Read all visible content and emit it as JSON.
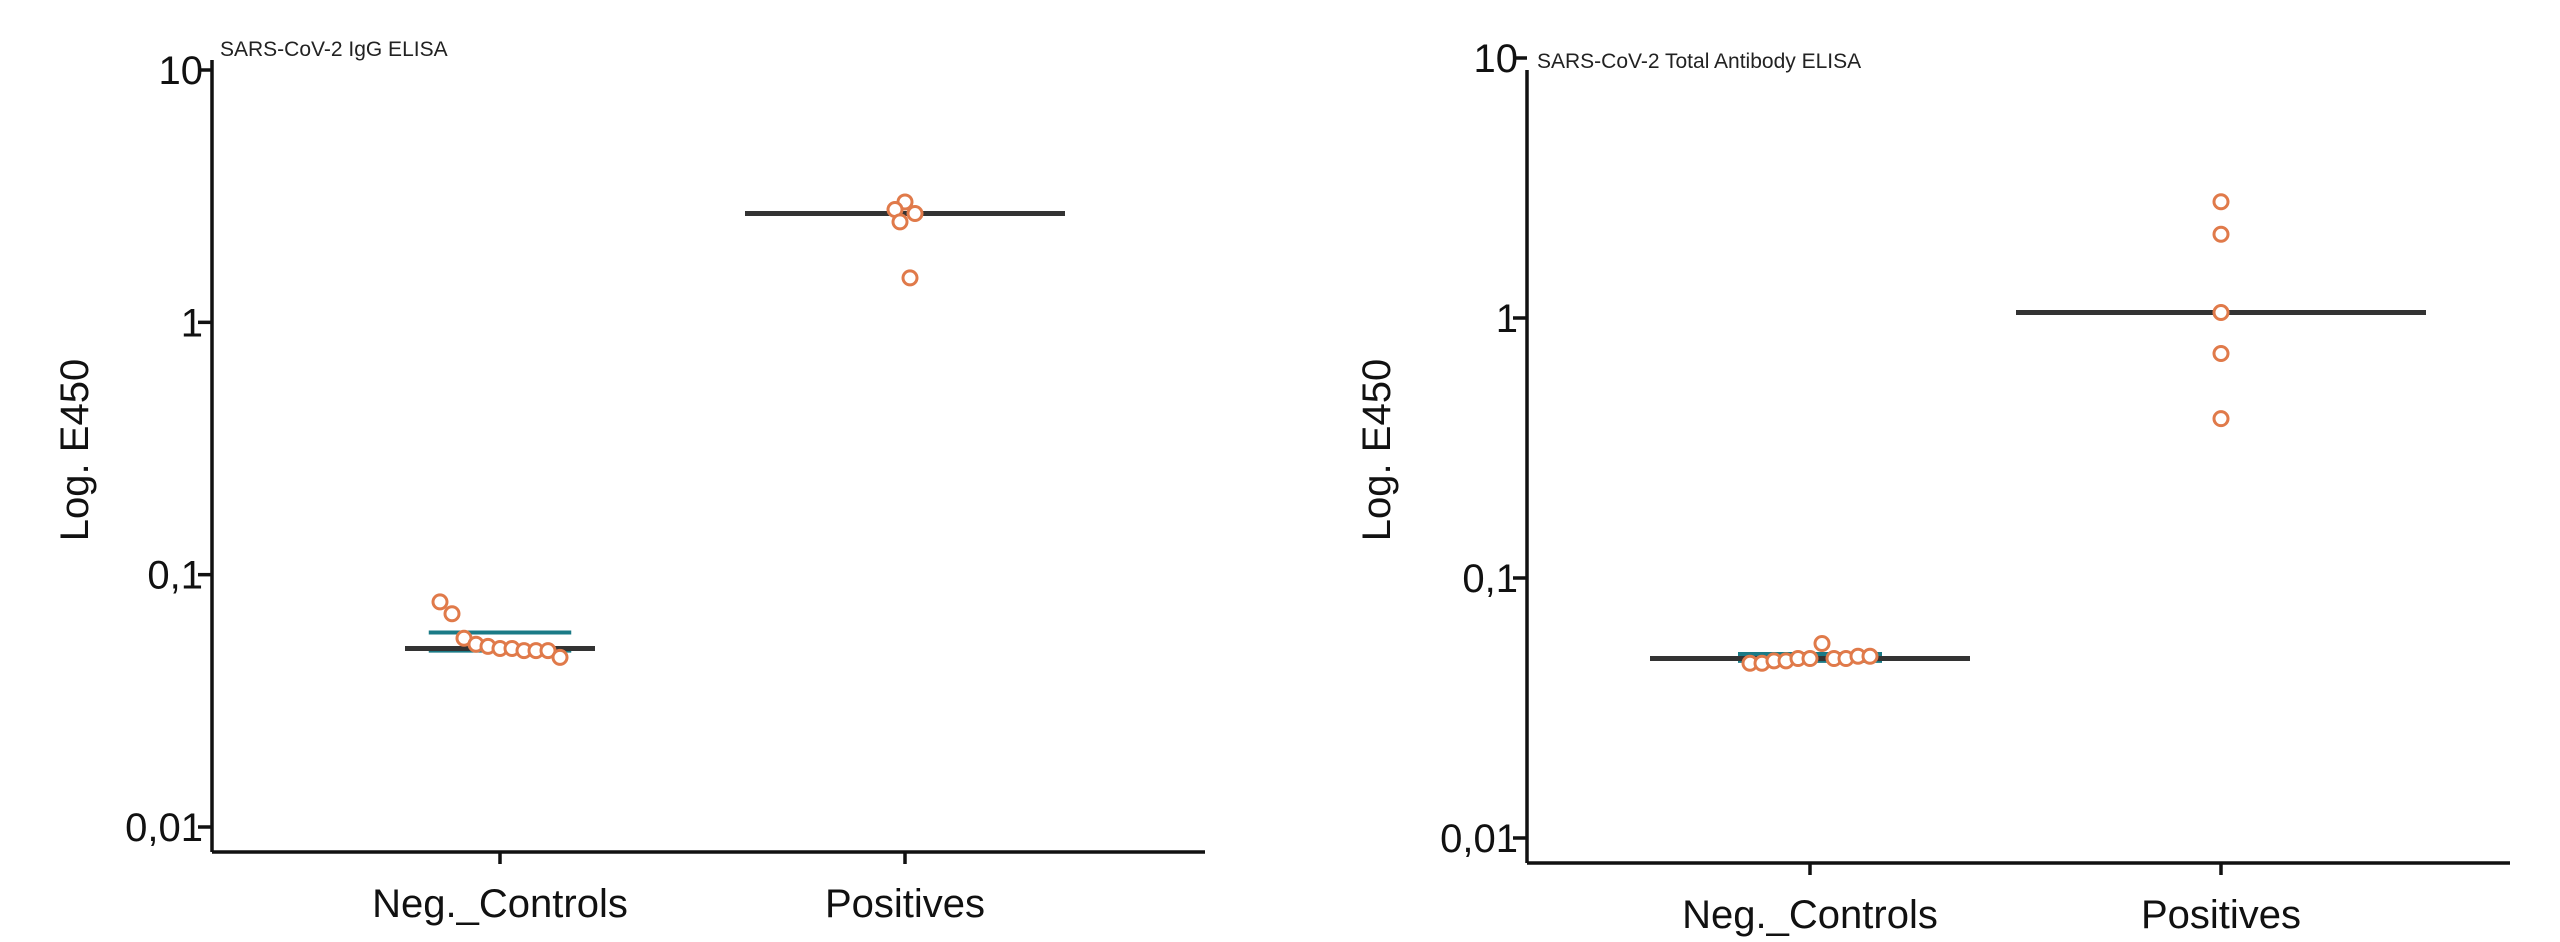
{
  "colors": {
    "point": "#e07a4a",
    "median_line": "#333333",
    "iqr_line": "#1a7a86",
    "axis": "#111111"
  },
  "chart_data": [
    {
      "type": "scatter",
      "subtype": "dot-plot",
      "title": "SARS-CoV-2 IgG ELISA",
      "ylabel": "Log. E450",
      "yscale": "log",
      "ylim": [
        0.008,
        10
      ],
      "yticks": [
        10,
        1,
        0.1,
        0.01
      ],
      "ytick_labels": [
        "10",
        "1",
        "0,1",
        "0,01"
      ],
      "categories": [
        "Neg._Controls",
        "Positives"
      ],
      "series": [
        {
          "category": "Neg._Controls",
          "values": [
            0.078,
            0.07,
            0.056,
            0.053,
            0.052,
            0.051,
            0.051,
            0.05,
            0.05,
            0.05,
            0.047
          ],
          "median": 0.051,
          "iqr": [
            0.05,
            0.059
          ]
        },
        {
          "category": "Positives",
          "values": [
            3.0,
            2.8,
            2.7,
            2.5,
            1.5
          ],
          "median": 2.7
        }
      ],
      "grid": false
    },
    {
      "type": "scatter",
      "subtype": "dot-plot",
      "title": "SARS-CoV-2 Total Antibody ELISA",
      "ylabel": "Log. E450",
      "yscale": "log",
      "ylim": [
        0.008,
        10
      ],
      "yticks": [
        10,
        1,
        0.1,
        0.01
      ],
      "ytick_labels": [
        "10",
        "1",
        "0,1",
        "0,01"
      ],
      "categories": [
        "Neg._Controls",
        "Positives"
      ],
      "series": [
        {
          "category": "Neg._Controls",
          "values": [
            0.047,
            0.047,
            0.048,
            0.048,
            0.049,
            0.049,
            0.056,
            0.049,
            0.049,
            0.05,
            0.05
          ],
          "median": 0.049,
          "iqr": [
            0.048,
            0.051
          ]
        },
        {
          "category": "Positives",
          "values": [
            2.8,
            2.1,
            1.05,
            0.73,
            0.41
          ],
          "median": 1.05
        }
      ],
      "grid": false
    }
  ]
}
